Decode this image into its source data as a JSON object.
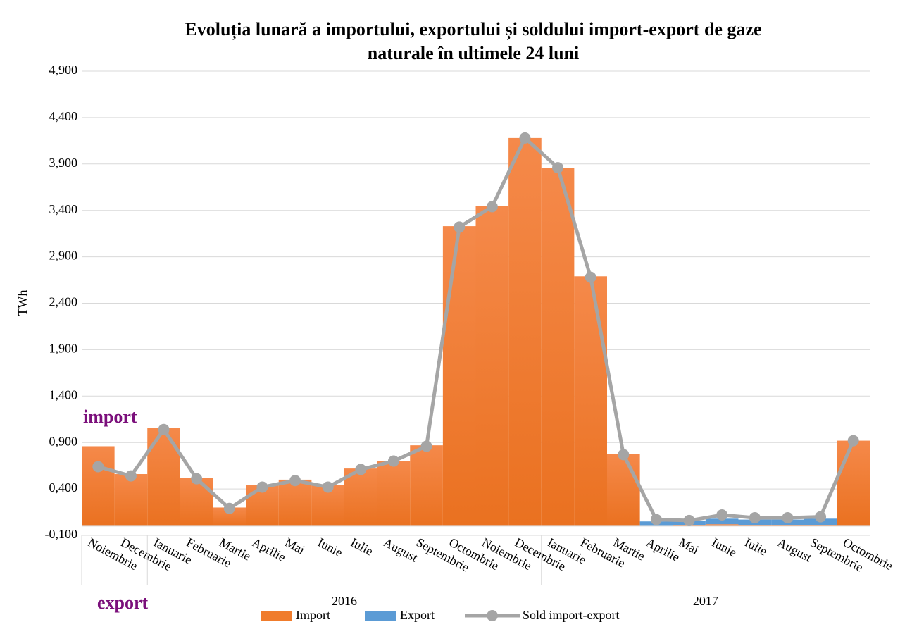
{
  "chart_data": {
    "type": "bar_line",
    "title": [
      "Evoluția lunară a importului, exportului și soldului import-export de gaze",
      "naturale în ultimele 24 luni"
    ],
    "ylabel": "TWh",
    "annotations": [
      "import",
      "export"
    ],
    "categories": [
      "Noiembrie",
      "Decembrie",
      "Ianuarie",
      "Februarie",
      "Martie",
      "Aprilie",
      "Mai",
      "Iunie",
      "Iulie",
      "August",
      "Septembrie",
      "Octombrie",
      "Noiembrie",
      "Decembrie",
      "Ianuarie",
      "Februarie",
      "Martie",
      "Aprilie",
      "Mai",
      "Iunie",
      "Iulie",
      "August",
      "Septembrie",
      "Octombrie"
    ],
    "groups": [
      "2016",
      "2017"
    ],
    "series": [
      {
        "name": "Import",
        "color": "#f07c2c",
        "kind": "bar",
        "values": [
          0.86,
          0.56,
          1.06,
          0.52,
          0.2,
          0.44,
          0.5,
          0.44,
          0.62,
          0.7,
          0.87,
          3.23,
          3.45,
          4.18,
          3.86,
          2.69,
          0.78,
          0.0,
          0.01,
          0.02,
          0.01,
          0.01,
          0.01,
          0.92
        ]
      },
      {
        "name": "Export",
        "color": "#5b9bd5",
        "kind": "bar",
        "values": [
          0,
          0,
          0,
          0,
          0,
          0,
          0,
          0,
          0,
          0,
          0,
          0,
          0,
          0,
          0,
          0,
          0,
          0.05,
          0.05,
          0.06,
          0.06,
          0.06,
          0.07,
          0
        ]
      },
      {
        "name": "Sold import-export",
        "color": "#a5a5a5",
        "kind": "line",
        "values": [
          0.64,
          0.54,
          1.04,
          0.51,
          0.19,
          0.42,
          0.49,
          0.42,
          0.61,
          0.7,
          0.86,
          3.22,
          3.44,
          4.18,
          3.86,
          2.68,
          0.77,
          0.07,
          0.06,
          0.12,
          0.09,
          0.09,
          0.1,
          0.92
        ]
      }
    ],
    "ylim": [
      -0.1,
      4.9
    ],
    "yticks": [
      {
        "value": -0.1,
        "label": "-0,100"
      },
      {
        "value": 0.4,
        "label": "0,400"
      },
      {
        "value": 0.9,
        "label": "0,900"
      },
      {
        "value": 1.4,
        "label": "1,400"
      },
      {
        "value": 1.9,
        "label": "1,900"
      },
      {
        "value": 2.4,
        "label": "2,400"
      },
      {
        "value": 2.9,
        "label": "2,900"
      },
      {
        "value": 3.4,
        "label": "3,400"
      },
      {
        "value": 3.9,
        "label": "3,900"
      },
      {
        "value": 4.4,
        "label": "4,400"
      },
      {
        "value": 4.9,
        "label": "4,900"
      }
    ],
    "grid": true,
    "legend": "bottom"
  }
}
